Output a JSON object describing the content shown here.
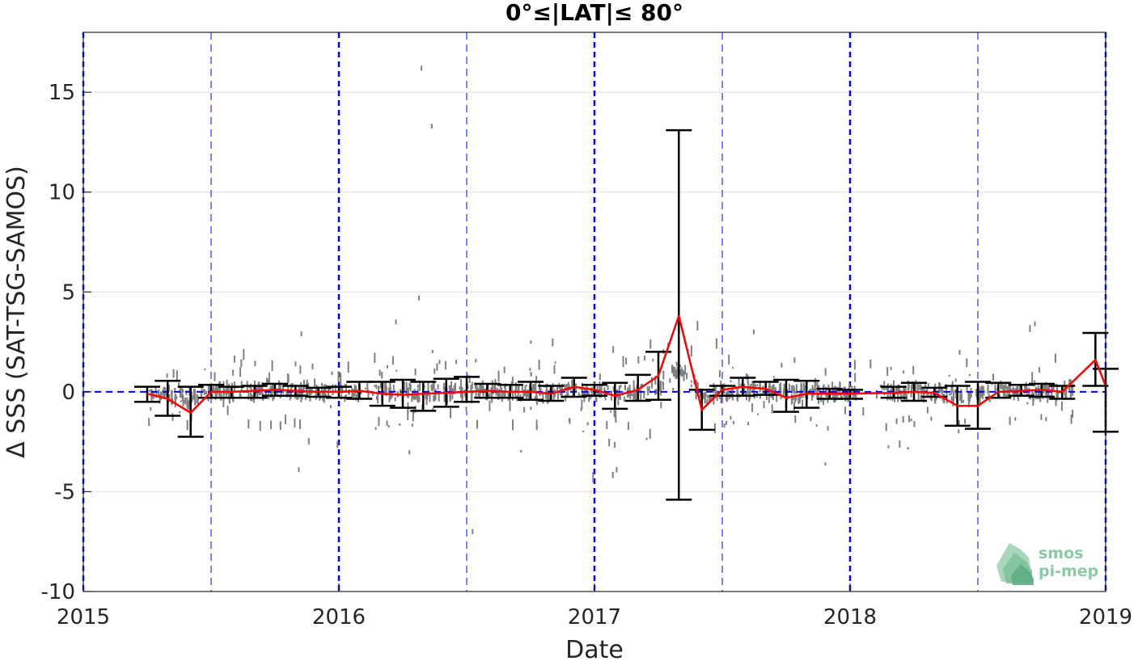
{
  "chart_data": {
    "type": "scatter",
    "title": "0°≤|LAT|≤ 80°",
    "xlabel": "Date",
    "ylabel": "Δ SSS (SAT-TSG-SAMOS)",
    "xlim": [
      2015.0,
      2019.0
    ],
    "ylim": [
      -10,
      18
    ],
    "xticks": [
      "2015",
      "2016",
      "2017",
      "2018",
      "2019"
    ],
    "yticks": [
      -10,
      -5,
      0,
      5,
      10,
      15
    ],
    "grid": "horizontal",
    "colors": {
      "scatter": "#808080",
      "mean_line": "#ff0000",
      "errorbar": "#000000",
      "reference": "#0000ff"
    },
    "reference_lines": {
      "zero_line_y": 0,
      "year_lines": [
        2015.0,
        2016.0,
        2017.0,
        2018.0,
        2019.0
      ],
      "half_year_lines": [
        2015.5,
        2016.5,
        2017.5,
        2018.5
      ]
    },
    "series": [
      {
        "type": "line",
        "x": [
          2015.25,
          2015.33,
          2015.42,
          2015.5,
          2015.58,
          2015.67,
          2015.75,
          2015.83,
          2015.92,
          2016.0,
          2016.08,
          2016.17,
          2016.25,
          2016.33,
          2016.42,
          2016.5,
          2016.58,
          2016.67,
          2016.75,
          2016.83,
          2016.92,
          2017.0,
          2017.08,
          2017.17,
          2017.25,
          2017.33,
          2017.42,
          2017.5,
          2017.58,
          2017.67,
          2017.75,
          2017.83,
          2017.92,
          2018.0,
          2018.17,
          2018.25,
          2018.33,
          2018.42,
          2018.5,
          2018.58,
          2018.67,
          2018.75,
          2018.83,
          2018.96,
          2019.0
        ],
        "y": [
          -0.1,
          -0.35,
          -1.05,
          0.0,
          0.0,
          0.05,
          0.1,
          0.05,
          0.0,
          0.0,
          0.05,
          -0.1,
          -0.15,
          -0.1,
          -0.05,
          0.0,
          0.05,
          0.0,
          0.0,
          -0.1,
          0.25,
          0.1,
          -0.2,
          0.1,
          0.8,
          3.8,
          -0.9,
          0.1,
          0.25,
          0.15,
          -0.3,
          -0.1,
          -0.1,
          -0.1,
          -0.05,
          0.0,
          -0.05,
          -0.7,
          -0.7,
          0.0,
          0.05,
          0.1,
          0.0,
          1.6,
          0.3
        ]
      },
      {
        "type": "errorbar",
        "x": [
          2015.25,
          2015.33,
          2015.42,
          2015.5,
          2015.58,
          2015.67,
          2015.75,
          2015.83,
          2015.92,
          2016.0,
          2016.08,
          2016.17,
          2016.25,
          2016.33,
          2016.42,
          2016.5,
          2016.58,
          2016.67,
          2016.75,
          2016.83,
          2016.92,
          2017.0,
          2017.08,
          2017.17,
          2017.25,
          2017.33,
          2017.42,
          2017.5,
          2017.58,
          2017.67,
          2017.75,
          2017.83,
          2017.92,
          2018.0,
          2018.17,
          2018.25,
          2018.33,
          2018.42,
          2018.5,
          2018.58,
          2018.67,
          2018.75,
          2018.83,
          2018.96,
          2019.0
        ],
        "low": [
          -0.5,
          -1.2,
          -2.25,
          -0.3,
          -0.3,
          -0.3,
          -0.2,
          -0.2,
          -0.25,
          -0.3,
          -0.35,
          -0.7,
          -0.8,
          -0.95,
          -0.75,
          -0.5,
          -0.3,
          -0.3,
          -0.4,
          -0.45,
          -0.25,
          -0.2,
          -0.85,
          -0.45,
          -0.4,
          -5.4,
          -1.9,
          -0.2,
          -0.2,
          -0.15,
          -1.0,
          -0.8,
          -0.35,
          -0.35,
          -0.3,
          -0.45,
          -0.25,
          -1.7,
          -1.85,
          -0.3,
          -0.2,
          -0.25,
          -0.35,
          0.3,
          -2.0
        ],
        "high": [
          0.25,
          0.55,
          0.25,
          0.35,
          0.25,
          0.3,
          0.4,
          0.3,
          0.2,
          0.25,
          0.5,
          0.5,
          0.6,
          0.5,
          0.65,
          0.75,
          0.4,
          0.35,
          0.5,
          0.3,
          0.7,
          0.35,
          0.45,
          0.85,
          2.0,
          13.1,
          0.1,
          0.3,
          0.7,
          0.5,
          0.6,
          0.55,
          0.15,
          0.1,
          0.25,
          0.45,
          0.2,
          0.3,
          0.5,
          0.45,
          0.35,
          0.4,
          0.3,
          2.95,
          1.15
        ]
      }
    ]
  },
  "logo": {
    "line1": "smos",
    "line2": "pi-mep"
  }
}
